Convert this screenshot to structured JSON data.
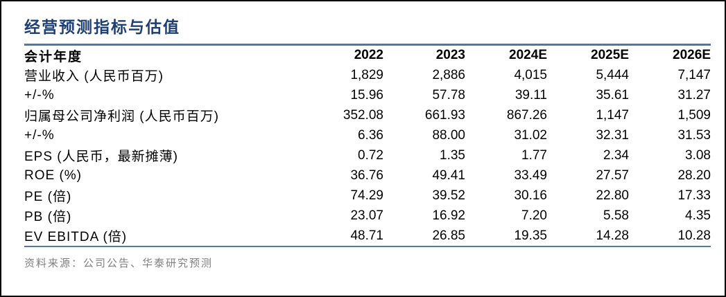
{
  "title": "经营预测指标与估值",
  "colors": {
    "title_text": "#1e3f73",
    "rule_line": "#53779f",
    "frame_border": "#000000",
    "body_text": "#000000",
    "source_text": "#808080"
  },
  "table": {
    "columns": [
      "会计年度",
      "2022",
      "2023",
      "2024E",
      "2025E",
      "2026E"
    ],
    "rows": [
      {
        "label": "营业收入 (人民币百万)",
        "values": [
          "1,829",
          "2,886",
          "4,015",
          "5,444",
          "7,147"
        ]
      },
      {
        "label": "+/-%",
        "values": [
          "15.96",
          "57.78",
          "39.11",
          "35.61",
          "31.27"
        ]
      },
      {
        "label": "归属母公司净利润 (人民币百万)",
        "values": [
          "352.08",
          "661.93",
          "867.26",
          "1,147",
          "1,509"
        ]
      },
      {
        "label": "+/-%",
        "values": [
          "6.36",
          "88.00",
          "31.02",
          "32.31",
          "31.53"
        ]
      },
      {
        "label": "EPS (人民币，最新摊薄)",
        "values": [
          "0.72",
          "1.35",
          "1.77",
          "2.34",
          "3.08"
        ]
      },
      {
        "label": "ROE (%)",
        "values": [
          "36.76",
          "49.41",
          "33.49",
          "27.57",
          "28.20"
        ]
      },
      {
        "label": "PE (倍)",
        "values": [
          "74.29",
          "39.52",
          "30.16",
          "22.80",
          "17.33"
        ]
      },
      {
        "label": "PB (倍)",
        "values": [
          "23.07",
          "16.92",
          "7.20",
          "5.58",
          "4.35"
        ]
      },
      {
        "label": "EV EBITDA (倍)",
        "values": [
          "48.71",
          "26.85",
          "19.35",
          "14.28",
          "10.28"
        ]
      }
    ]
  },
  "source": "资料来源：公司公告、华泰研究预测"
}
